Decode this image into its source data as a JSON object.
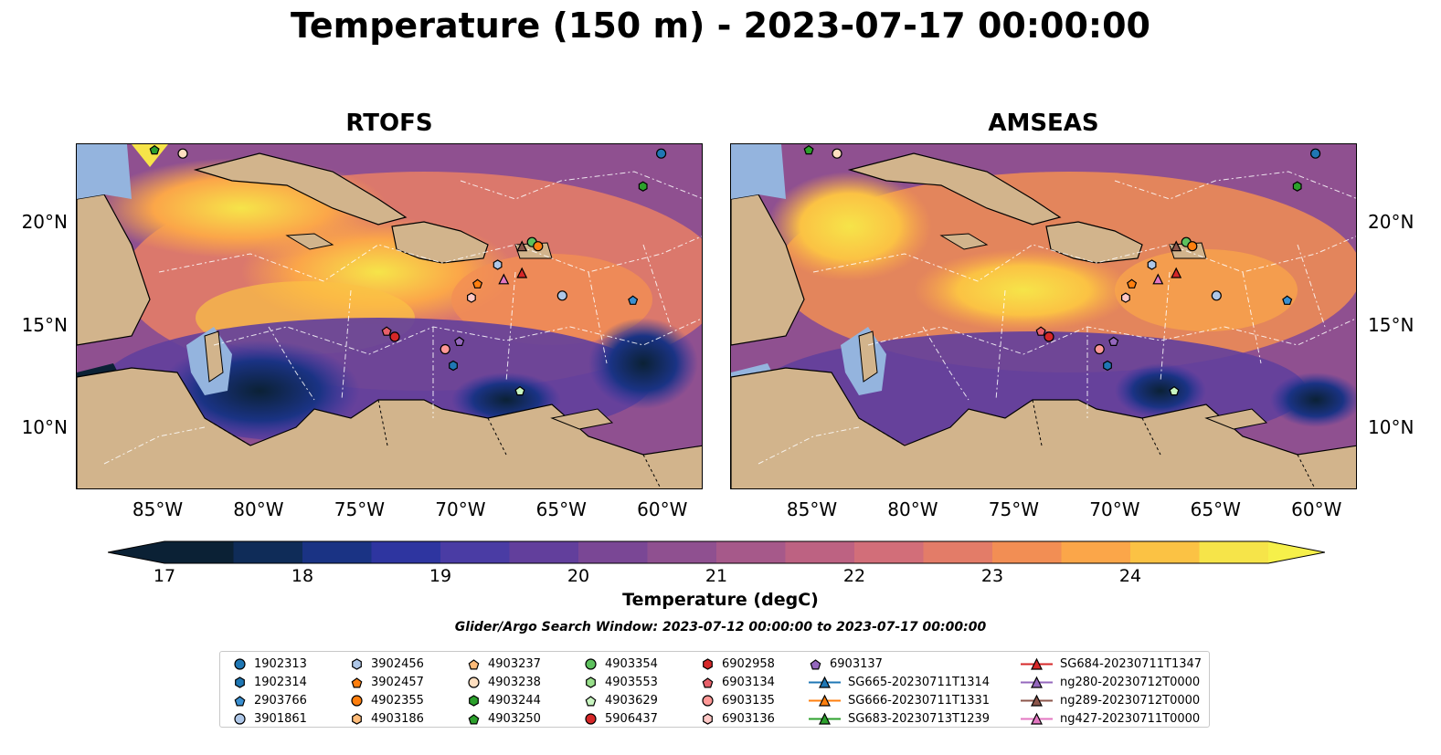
{
  "title": "Temperature (150 m) - 2023-07-17 00:00:00",
  "panels": [
    {
      "title": "RTOFS"
    },
    {
      "title": "AMSEAS"
    }
  ],
  "lon_ticks": [
    "85°W",
    "80°W",
    "75°W",
    "70°W",
    "65°W",
    "60°W"
  ],
  "lat_ticks": [
    "20°N",
    "15°N",
    "10°N"
  ],
  "colorbar": {
    "label": "Temperature (degC)",
    "ticks": [
      "17",
      "18",
      "19",
      "20",
      "21",
      "22",
      "23",
      "24"
    ],
    "colors": [
      "#0b2135",
      "#0f2c58",
      "#1a3384",
      "#2e35a0",
      "#4a3ca4",
      "#623f9c",
      "#7a4795",
      "#8f5090",
      "#a6598a",
      "#bd6282",
      "#d26e79",
      "#e37c68",
      "#f28e54",
      "#fba649",
      "#fbc244",
      "#f6e449"
    ]
  },
  "search_window": "Glider/Argo Search Window: 2023-07-12 00:00:00 to 2023-07-17 00:00:00",
  "legend": [
    [
      {
        "label": "1902313",
        "marker": "circle",
        "color": "#1f77b4"
      },
      {
        "label": "1902314",
        "marker": "hexagon",
        "color": "#1f77b4"
      },
      {
        "label": "2903766",
        "marker": "pentagon",
        "color": "#3a8fd0"
      },
      {
        "label": "3901861",
        "marker": "circle",
        "color": "#aec7e8"
      }
    ],
    [
      {
        "label": "3902456",
        "marker": "hexagon",
        "color": "#aec7e8"
      },
      {
        "label": "3902457",
        "marker": "pentagon",
        "color": "#ff7f0e"
      },
      {
        "label": "4902355",
        "marker": "circle",
        "color": "#ff7f0e"
      },
      {
        "label": "4903186",
        "marker": "hexagon",
        "color": "#ffbb78"
      }
    ],
    [
      {
        "label": "4903237",
        "marker": "pentagon",
        "color": "#ffbb78"
      },
      {
        "label": "4903238",
        "marker": "circle",
        "color": "#ffdfc0"
      },
      {
        "label": "4903244",
        "marker": "hexagon",
        "color": "#2ca02c"
      },
      {
        "label": "4903250",
        "marker": "pentagon",
        "color": "#2ca02c"
      }
    ],
    [
      {
        "label": "4903354",
        "marker": "circle",
        "color": "#5dc05d"
      },
      {
        "label": "4903553",
        "marker": "hexagon",
        "color": "#98df8a"
      },
      {
        "label": "4903629",
        "marker": "pentagon",
        "color": "#c8f5c0"
      },
      {
        "label": "5906437",
        "marker": "circle",
        "color": "#d62728"
      }
    ],
    [
      {
        "label": "6902958",
        "marker": "hexagon",
        "color": "#d62728"
      },
      {
        "label": "6903134",
        "marker": "pentagon",
        "color": "#e8606a"
      },
      {
        "label": "6903135",
        "marker": "circle",
        "color": "#ff9896"
      },
      {
        "label": "6903136",
        "marker": "hexagon",
        "color": "#ffc8c6"
      }
    ],
    [
      {
        "label": "6903137",
        "marker": "pentagon",
        "color": "#9467bd"
      },
      {
        "label": "SG665-20230711T1314",
        "marker": "triangle",
        "color": "#1f77b4"
      },
      {
        "label": "SG666-20230711T1331",
        "marker": "triangle",
        "color": "#ff7f0e"
      },
      {
        "label": "SG683-20230713T1239",
        "marker": "triangle",
        "color": "#2ca02c"
      }
    ],
    [
      {
        "label": "SG684-20230711T1347",
        "marker": "triangle",
        "color": "#d62728"
      },
      {
        "label": "ng280-20230712T0000",
        "marker": "triangle",
        "color": "#9467bd"
      },
      {
        "label": "ng289-20230712T0000",
        "marker": "triangle",
        "color": "#8c564b"
      },
      {
        "label": "ng427-20230711T0000",
        "marker": "triangle",
        "color": "#e377c2"
      }
    ]
  ],
  "map_colors": {
    "land": "#d2b48c",
    "shallow_water": "#94b4de"
  },
  "observations": [
    {
      "id": "4903250",
      "lon": -85.2,
      "lat": 23.6
    },
    {
      "id": "4903238",
      "lon": -83.8,
      "lat": 23.4
    },
    {
      "id": "1902313",
      "lon": -60.1,
      "lat": 23.4
    },
    {
      "id": "4903244",
      "lon": -61.0,
      "lat": 21.8
    },
    {
      "id": "4903354",
      "lon": -66.5,
      "lat": 19.1
    },
    {
      "id": "4902355",
      "lon": -66.2,
      "lat": 18.9
    },
    {
      "id": "ng289-20230712T0000",
      "lon": -67.0,
      "lat": 18.9
    },
    {
      "id": "3902456",
      "lon": -68.2,
      "lat": 18.0
    },
    {
      "id": "SG684-20230711T1347",
      "lon": -67.0,
      "lat": 17.6
    },
    {
      "id": "ng427-20230711T0000",
      "lon": -67.9,
      "lat": 17.3
    },
    {
      "id": "3902457",
      "lon": -69.2,
      "lat": 17.1
    },
    {
      "id": "3901861",
      "lon": -65.0,
      "lat": 16.5
    },
    {
      "id": "6903136",
      "lon": -69.5,
      "lat": 16.4
    },
    {
      "id": "2903766",
      "lon": -61.5,
      "lat": 16.3
    },
    {
      "id": "6903134",
      "lon": -73.7,
      "lat": 14.8
    },
    {
      "id": "5906437",
      "lon": -73.3,
      "lat": 14.5
    },
    {
      "id": "6903137",
      "lon": -70.1,
      "lat": 14.3
    },
    {
      "id": "6903135",
      "lon": -70.8,
      "lat": 13.9
    },
    {
      "id": "1902314",
      "lon": -70.4,
      "lat": 13.1
    },
    {
      "id": "4903629",
      "lon": -67.1,
      "lat": 11.9
    }
  ]
}
